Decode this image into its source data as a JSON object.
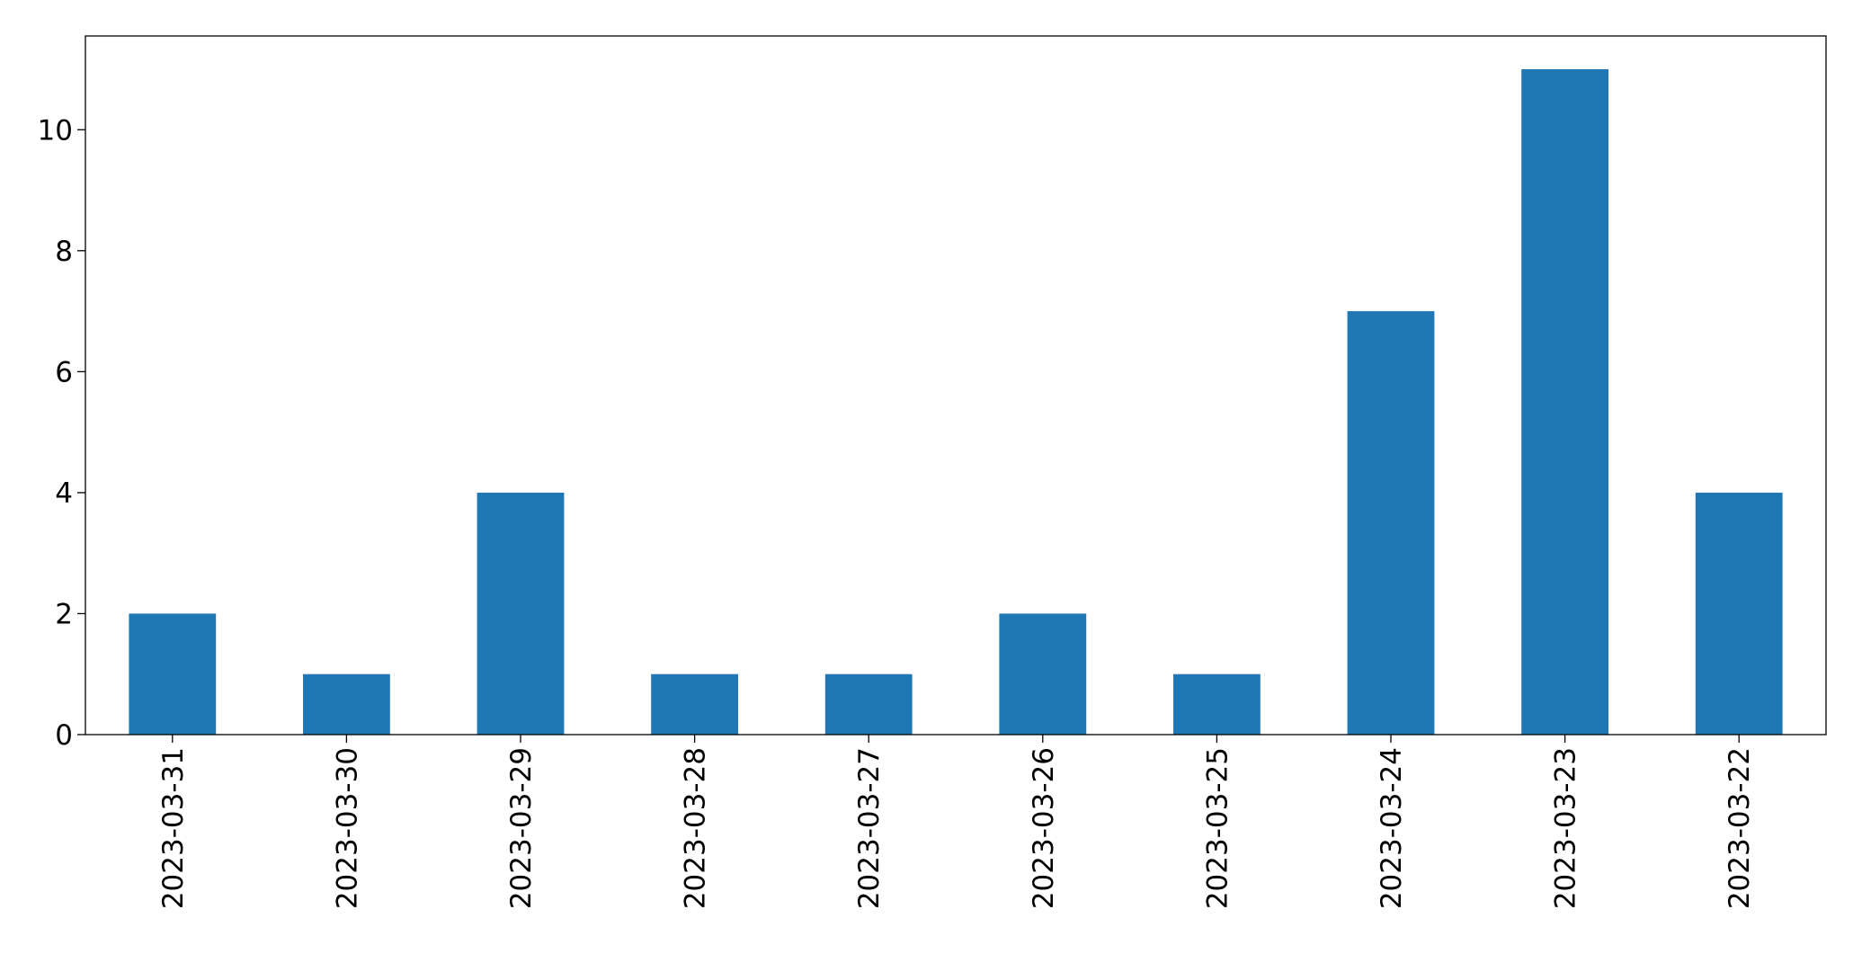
{
  "chart_data": {
    "type": "bar",
    "categories": [
      "2023-03-31",
      "2023-03-30",
      "2023-03-29",
      "2023-03-28",
      "2023-03-27",
      "2023-03-26",
      "2023-03-25",
      "2023-03-24",
      "2023-03-23",
      "2023-03-22"
    ],
    "values": [
      2,
      1,
      4,
      1,
      1,
      2,
      1,
      7,
      11,
      4
    ],
    "color": "#1f77b4",
    "ylim": [
      0,
      11.55
    ],
    "yticks": [
      0,
      2,
      4,
      6,
      8,
      10
    ],
    "grid": false
  }
}
